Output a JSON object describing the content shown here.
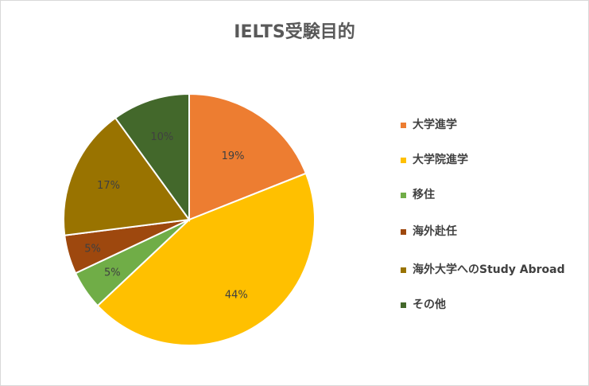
{
  "chart_data": {
    "type": "pie",
    "title": "IELTS受験目的",
    "categories": [
      "大学進学",
      "大学院進学",
      "移住",
      "海外赴任",
      "海外大学へのStudy Abroad",
      "その他"
    ],
    "values": [
      19,
      44,
      5,
      5,
      17,
      10
    ],
    "data_labels": [
      "19%",
      "44%",
      "5%",
      "5%",
      "17%",
      "10%"
    ],
    "colors": [
      "#ED7D31",
      "#FFC000",
      "#70AD47",
      "#9E480E",
      "#997300",
      "#43682B"
    ],
    "legend_position": "right",
    "start_angle": "12 o'clock",
    "direction": "clockwise"
  }
}
